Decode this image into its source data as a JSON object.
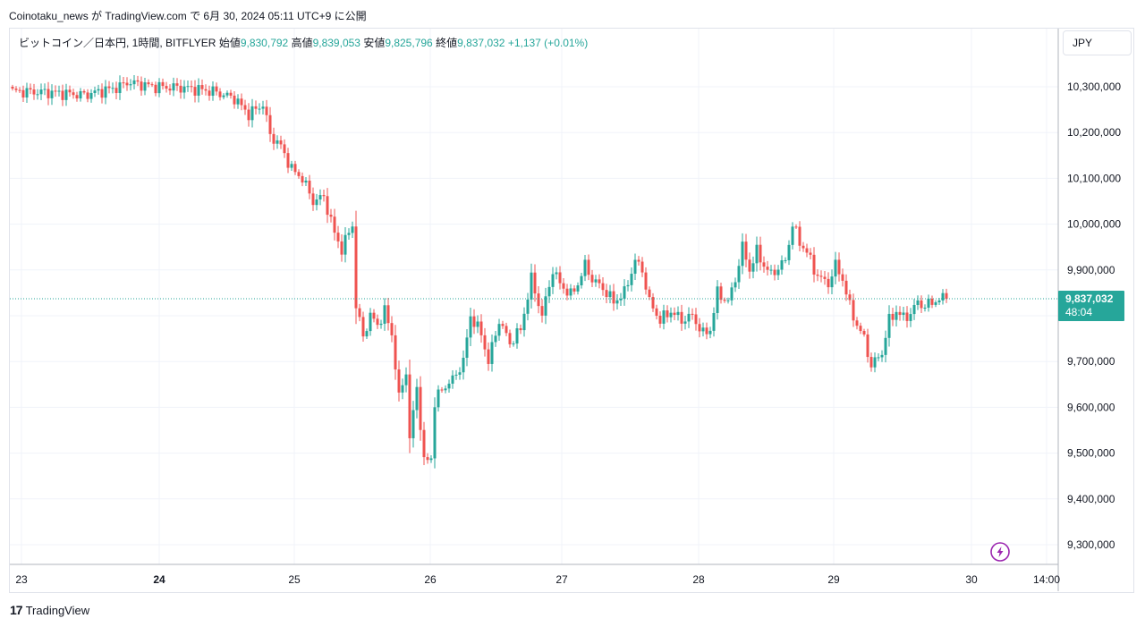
{
  "header": {
    "caption": "Coinotaku_news が TradingView.com で 6月 30, 2024 05:11 UTC+9 に公開"
  },
  "legend": {
    "symbol": "ビットコイン／日本円, 1時間, BITFLYER",
    "open_label": "始値",
    "open": "9,830,792",
    "high_label": "高値",
    "high": "9,839,053",
    "low_label": "安値",
    "low": "9,825,796",
    "close_label": "終値",
    "close": "9,837,032",
    "change": "+1,137 (+0.01%)"
  },
  "currency": "JPY",
  "price_tag": {
    "price": "9,837,032",
    "countdown": "48:04"
  },
  "brand": {
    "logo": "17",
    "name": "TradingView"
  },
  "colors": {
    "up": "#26a69a",
    "down": "#ef5350",
    "grid": "#f0f3fa",
    "axis_text": "#131722",
    "lightning": "#9c27b0"
  },
  "icons": {
    "lightning": "lightning-icon"
  },
  "chart_data": {
    "type": "candlestick",
    "interval": "1h",
    "y_ticks": [
      "10,300,000",
      "10,200,000",
      "10,100,000",
      "10,000,000",
      "9,900,000",
      "9,800,000",
      "9,700,000",
      "9,600,000",
      "9,500,000",
      "9,400,000",
      "9,300,000"
    ],
    "y_tick_values": [
      10300000,
      10200000,
      10100000,
      10000000,
      9900000,
      9800000,
      9700000,
      9600000,
      9500000,
      9400000,
      9300000
    ],
    "ylim": [
      9250000,
      10370000
    ],
    "x_ticks": [
      "23",
      "24",
      "25",
      "26",
      "27",
      "28",
      "29",
      "30",
      "14:00"
    ],
    "x_tick_bold": [
      false,
      true,
      false,
      false,
      false,
      false,
      false,
      false,
      false
    ],
    "last_price": 9837032,
    "close_path": [
      [
        0,
        10290000
      ],
      [
        10,
        10288000
      ],
      [
        20,
        10282000
      ],
      [
        30,
        10300000
      ],
      [
        32,
        10310000
      ],
      [
        40,
        10300000
      ],
      [
        48,
        10298000
      ],
      [
        56,
        10290000
      ],
      [
        62,
        10275000
      ],
      [
        66,
        10240000
      ],
      [
        70,
        10262000
      ],
      [
        72,
        10195000
      ],
      [
        75,
        10170000
      ],
      [
        78,
        10120000
      ],
      [
        81,
        10100000
      ],
      [
        84,
        10050000
      ],
      [
        87,
        10060000
      ],
      [
        90,
        9980000
      ],
      [
        92,
        9945000
      ],
      [
        95,
        10000000
      ],
      [
        96,
        9820000
      ],
      [
        98,
        9755000
      ],
      [
        100,
        9800000
      ],
      [
        102,
        9780000
      ],
      [
        104,
        9810000
      ],
      [
        106,
        9760000
      ],
      [
        108,
        9620000
      ],
      [
        110,
        9680000
      ],
      [
        111,
        9530000
      ],
      [
        113,
        9645000
      ],
      [
        115,
        9480000
      ],
      [
        117,
        9490000
      ],
      [
        118,
        9610000
      ],
      [
        120,
        9640000
      ],
      [
        123,
        9660000
      ],
      [
        126,
        9700000
      ],
      [
        128,
        9800000
      ],
      [
        131,
        9760000
      ],
      [
        133,
        9700000
      ],
      [
        136,
        9790000
      ],
      [
        139,
        9740000
      ],
      [
        142,
        9770000
      ],
      [
        145,
        9880000
      ],
      [
        148,
        9800000
      ],
      [
        151,
        9900000
      ],
      [
        153,
        9870000
      ],
      [
        156,
        9845000
      ],
      [
        158,
        9870000
      ],
      [
        160,
        9910000
      ],
      [
        162,
        9880000
      ],
      [
        165,
        9860000
      ],
      [
        168,
        9830000
      ],
      [
        171,
        9850000
      ],
      [
        174,
        9920000
      ],
      [
        176,
        9900000
      ],
      [
        178,
        9830000
      ],
      [
        181,
        9790000
      ],
      [
        184,
        9810000
      ],
      [
        187,
        9790000
      ],
      [
        190,
        9800000
      ],
      [
        193,
        9760000
      ],
      [
        195,
        9770000
      ],
      [
        197,
        9850000
      ],
      [
        200,
        9830000
      ],
      [
        202,
        9880000
      ],
      [
        204,
        9950000
      ],
      [
        206,
        9900000
      ],
      [
        208,
        9940000
      ],
      [
        210,
        9910000
      ],
      [
        212,
        9890000
      ],
      [
        214,
        9905000
      ],
      [
        216,
        9920000
      ],
      [
        218,
        10000000
      ],
      [
        220,
        9960000
      ],
      [
        222,
        9940000
      ],
      [
        224,
        9900000
      ],
      [
        226,
        9880000
      ],
      [
        228,
        9870000
      ],
      [
        230,
        9910000
      ],
      [
        232,
        9880000
      ],
      [
        234,
        9820000
      ],
      [
        236,
        9780000
      ],
      [
        238,
        9750000
      ],
      [
        240,
        9690000
      ],
      [
        241,
        9700000
      ],
      [
        243,
        9720000
      ],
      [
        245,
        9790000
      ],
      [
        247,
        9810000
      ],
      [
        249,
        9795000
      ],
      [
        251,
        9805000
      ],
      [
        253,
        9830000
      ],
      [
        255,
        9820000
      ],
      [
        257,
        9830000
      ],
      [
        259,
        9835000
      ],
      [
        261,
        9837032
      ]
    ]
  }
}
